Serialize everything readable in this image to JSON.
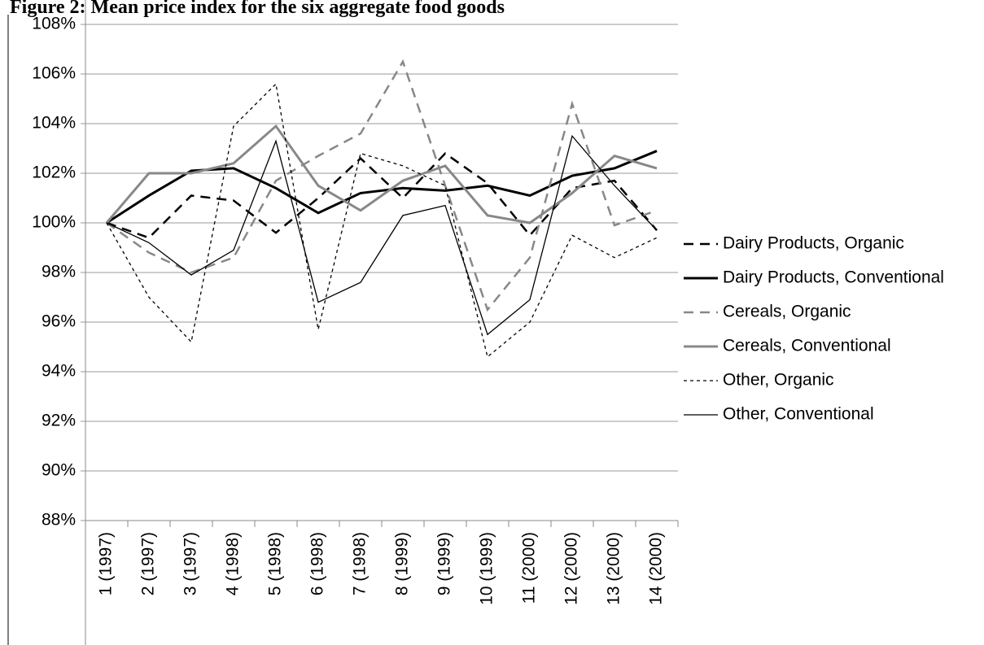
{
  "chart_data": {
    "type": "line",
    "title": "Figure 2: Mean price index for the six aggregate food goods",
    "categories": [
      "1 (1997)",
      "2 (1997)",
      "3 (1997)",
      "4 (1998)",
      "5 (1998)",
      "6 (1998)",
      "7 (1998)",
      "8 (1999)",
      "9 (1999)",
      "10 (1999)",
      "11 (2000)",
      "12 (2000)",
      "13 (2000)",
      "14 (2000)"
    ],
    "ylim": [
      88,
      108
    ],
    "yticks": [
      {
        "value": 88,
        "label": "88%"
      },
      {
        "value": 90,
        "label": "90%"
      },
      {
        "value": 92,
        "label": "92%"
      },
      {
        "value": 94,
        "label": "94%"
      },
      {
        "value": 96,
        "label": "96%"
      },
      {
        "value": 98,
        "label": "98%"
      },
      {
        "value": 100,
        "label": "100%"
      },
      {
        "value": 102,
        "label": "102%"
      },
      {
        "value": 104,
        "label": "104%"
      },
      {
        "value": 106,
        "label": "106%"
      },
      {
        "value": 108,
        "label": "108%"
      }
    ],
    "grid": true,
    "legend": "right",
    "series": [
      {
        "name": "Dairy Products, Organic",
        "color": "#000000",
        "dash": "dashed",
        "width": 2.5,
        "values": [
          100,
          99.4,
          101.1,
          100.9,
          99.6,
          101.0,
          102.6,
          101.0,
          102.8,
          101.6,
          99.5,
          101.4,
          101.7,
          99.7
        ]
      },
      {
        "name": "Dairy Products, Conventional",
        "color": "#000000",
        "dash": "solid",
        "width": 3,
        "values": [
          100,
          101.1,
          102.1,
          102.2,
          101.4,
          100.4,
          101.2,
          101.4,
          101.3,
          101.5,
          101.1,
          101.9,
          102.2,
          102.9
        ]
      },
      {
        "name": "Cereals, Organic",
        "color": "#888888",
        "dash": "dashed",
        "width": 2.5,
        "values": [
          100,
          98.8,
          98.0,
          98.6,
          101.7,
          102.7,
          103.6,
          106.5,
          101.5,
          96.5,
          98.6,
          104.8,
          99.9,
          100.5
        ]
      },
      {
        "name": "Cereals, Conventional",
        "color": "#888888",
        "dash": "solid",
        "width": 3,
        "values": [
          100,
          102.0,
          102.0,
          102.4,
          103.9,
          101.5,
          100.5,
          101.7,
          102.3,
          100.3,
          100.0,
          101.2,
          102.7,
          102.2
        ]
      },
      {
        "name": "Other, Organic",
        "color": "#000000",
        "dash": "dotted",
        "width": 1.3,
        "values": [
          100,
          97.0,
          95.2,
          103.9,
          105.6,
          95.7,
          102.8,
          102.3,
          101.5,
          94.6,
          96.0,
          99.5,
          98.6,
          99.4
        ]
      },
      {
        "name": "Other, Conventional",
        "color": "#000000",
        "dash": "solid",
        "width": 1.3,
        "values": [
          100,
          99.2,
          97.9,
          98.9,
          103.3,
          96.8,
          97.6,
          100.3,
          100.7,
          95.5,
          96.9,
          103.5,
          101.5,
          99.7
        ]
      }
    ]
  }
}
